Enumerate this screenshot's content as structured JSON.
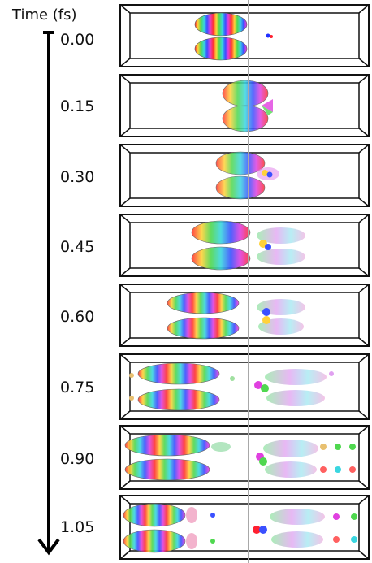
{
  "axis": {
    "title": "Time (fs)"
  },
  "times": [
    "0.00",
    "0.15",
    "0.30",
    "0.45",
    "0.60",
    "0.75",
    "0.90",
    "1.05"
  ]
}
